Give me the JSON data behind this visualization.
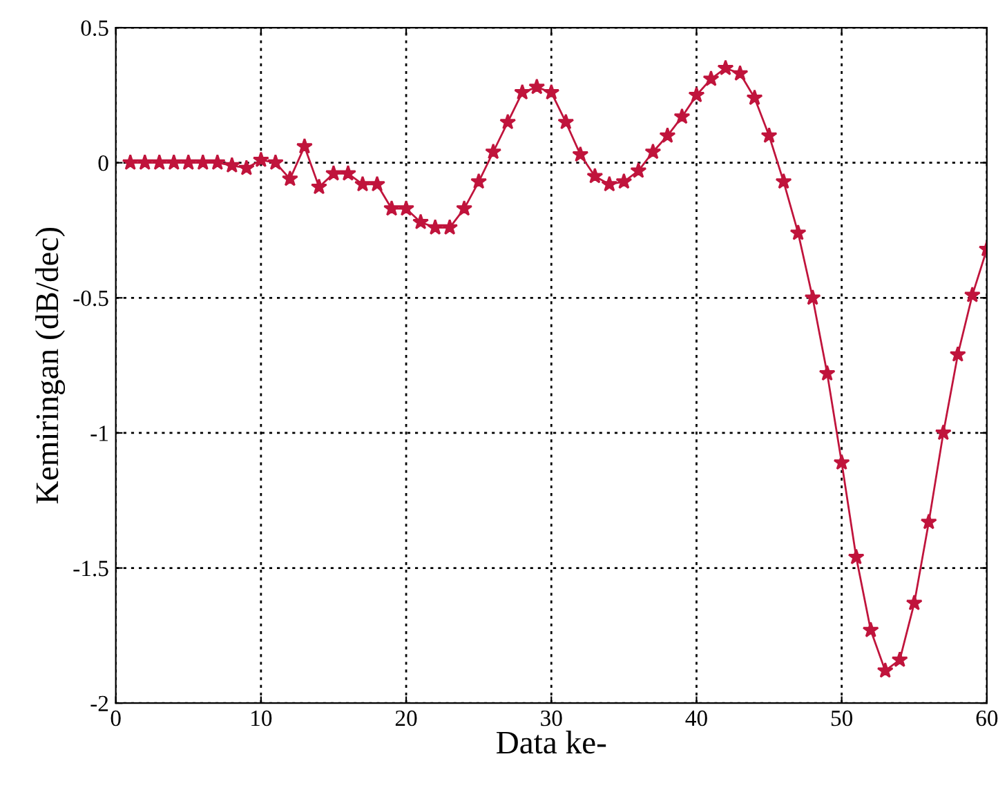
{
  "chart_data": {
    "type": "line",
    "xlabel": "Data ke-",
    "ylabel": "Kemiringan (dB/dec)",
    "x": [
      1,
      2,
      3,
      4,
      5,
      6,
      7,
      8,
      9,
      10,
      11,
      12,
      13,
      14,
      15,
      16,
      17,
      18,
      19,
      20,
      21,
      22,
      23,
      24,
      25,
      26,
      27,
      28,
      29,
      30,
      31,
      32,
      33,
      34,
      35,
      36,
      37,
      38,
      39,
      40,
      41,
      42,
      43,
      44,
      45,
      46,
      47,
      48,
      49,
      50,
      51,
      52,
      53,
      54,
      55,
      56,
      57,
      58,
      59,
      60
    ],
    "series": [
      {
        "color": "#c0143c",
        "values": [
          0,
          0,
          0,
          0,
          0,
          0,
          0,
          -0.01,
          -0.02,
          0.01,
          0.0,
          -0.06,
          0.06,
          -0.09,
          -0.04,
          -0.04,
          -0.08,
          -0.08,
          -0.17,
          -0.17,
          -0.22,
          -0.24,
          -0.24,
          -0.17,
          -0.07,
          0.04,
          0.15,
          0.26,
          0.28,
          0.26,
          0.15,
          0.03,
          -0.05,
          -0.08,
          -0.07,
          -0.03,
          0.04,
          0.1,
          0.17,
          0.25,
          0.31,
          0.35,
          0.33,
          0.24,
          0.1,
          -0.07,
          -0.26,
          -0.5,
          -0.78,
          -1.11,
          -1.46,
          -1.73,
          -1.88,
          -1.84,
          -1.63,
          -1.33,
          -1.0,
          -0.71,
          -0.49,
          -0.32
        ]
      }
    ],
    "xlim": [
      0,
      60
    ],
    "ylim": [
      -2,
      0.5
    ],
    "xticks": [
      0,
      10,
      20,
      30,
      40,
      50,
      60
    ],
    "yticks": [
      -2,
      -1.5,
      -1,
      -0.5,
      0,
      0.5
    ],
    "grid": true,
    "marker": "star",
    "line_style": "solid",
    "legend": false
  }
}
